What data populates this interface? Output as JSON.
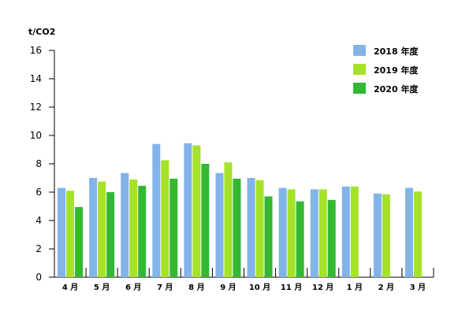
{
  "chart_data": {
    "type": "bar",
    "ylabel": "t/CO2",
    "ylim": [
      0,
      16
    ],
    "yticks": [
      0,
      2,
      4,
      6,
      8,
      10,
      12,
      14,
      16
    ],
    "grid": false,
    "legend_position": "top-right",
    "categories": [
      "4 月",
      "5 月",
      "6 月",
      "7 月",
      "8 月",
      "9 月",
      "10 月",
      "11 月",
      "12 月",
      "1 月",
      "2 月",
      "3 月"
    ],
    "series": [
      {
        "name": "2018 年度",
        "color": "#82b4ea",
        "values": [
          6.3,
          7.0,
          7.35,
          9.4,
          9.45,
          7.35,
          7.0,
          6.3,
          6.2,
          6.4,
          5.9,
          6.3
        ]
      },
      {
        "name": "2019 年度",
        "color": "#a6e22a",
        "values": [
          6.1,
          6.75,
          6.9,
          8.25,
          9.3,
          8.1,
          6.85,
          6.2,
          6.2,
          6.4,
          5.85,
          6.05
        ]
      },
      {
        "name": "2020 年度",
        "color": "#34b833",
        "values": [
          4.95,
          6.0,
          6.45,
          6.95,
          8.0,
          6.95,
          5.7,
          5.35,
          5.45,
          null,
          null,
          null
        ]
      }
    ]
  }
}
